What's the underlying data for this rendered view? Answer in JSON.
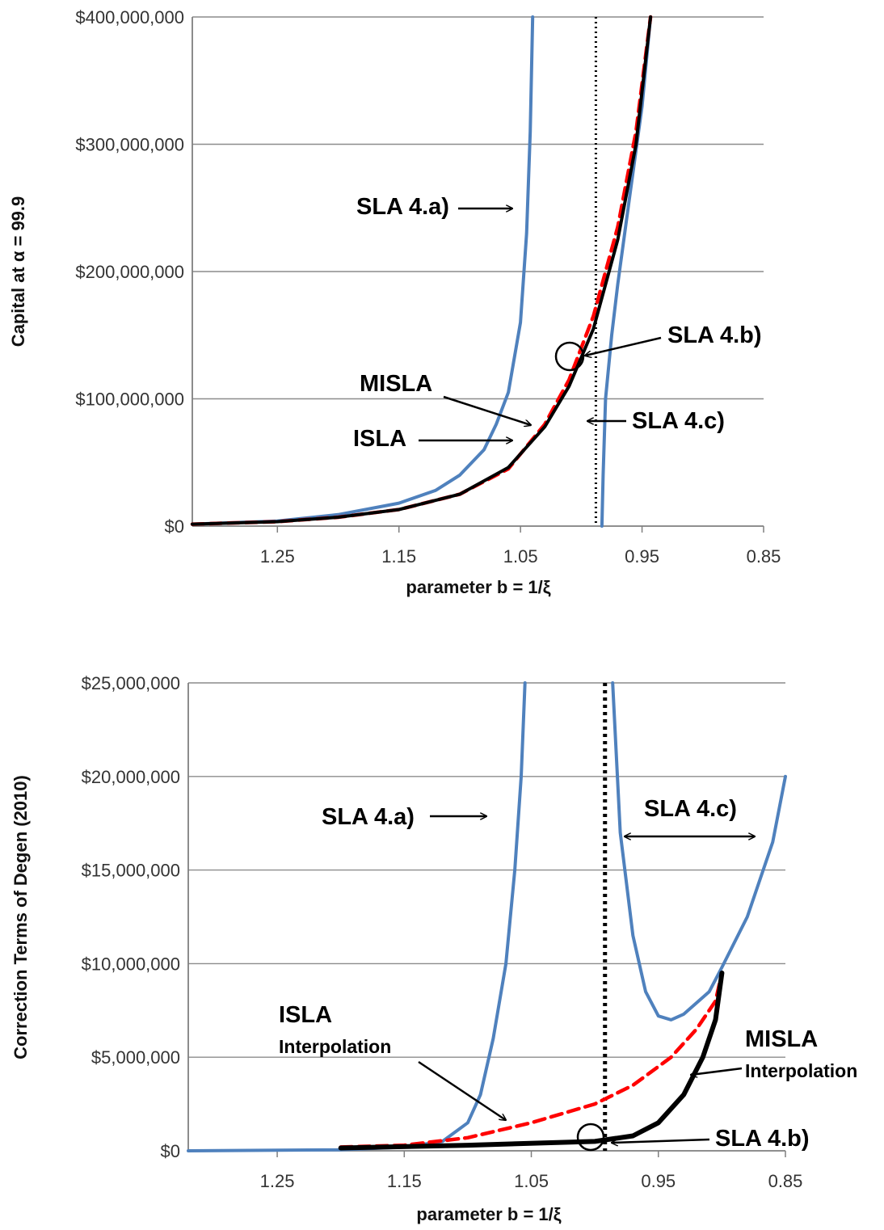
{
  "chart_data": [
    {
      "type": "line",
      "xlabel": "parameter b = 1/ξ",
      "ylabel": "Capital at α = 99.9",
      "x_reversed": true,
      "xlim": [
        1.32,
        0.85
      ],
      "ylim": [
        0,
        400000000
      ],
      "x_ticks": [
        "1.25",
        "1.15",
        "1.05",
        "0.95",
        "0.85"
      ],
      "y_ticks": [
        "$0",
        "$100,000,000",
        "$200,000,000",
        "$300,000,000",
        "$400,000,000"
      ],
      "grid": "horizontal",
      "vline_x": 0.988,
      "series": [
        {
          "key": "sla4a",
          "color": "#4f81bd",
          "style": "solid",
          "points": [
            [
              1.32,
              1500000
            ],
            [
              1.25,
              4000000
            ],
            [
              1.2,
              9000000
            ],
            [
              1.15,
              18000000
            ],
            [
              1.12,
              28000000
            ],
            [
              1.1,
              40000000
            ],
            [
              1.08,
              60000000
            ],
            [
              1.07,
              80000000
            ],
            [
              1.06,
              105000000
            ],
            [
              1.05,
              160000000
            ],
            [
              1.045,
              230000000
            ],
            [
              1.042,
              310000000
            ],
            [
              1.04,
              400000000
            ]
          ]
        },
        {
          "key": "sla4c",
          "color": "#4f81bd",
          "style": "solid",
          "points": [
            [
              0.983,
              0
            ],
            [
              0.982,
              40000000
            ],
            [
              0.98,
              100000000
            ],
            [
              0.975,
              150000000
            ],
            [
              0.97,
              190000000
            ],
            [
              0.96,
              260000000
            ],
            [
              0.95,
              330000000
            ],
            [
              0.943,
              400000000
            ]
          ]
        },
        {
          "key": "isla",
          "color": "#ff0000",
          "style": "dashed",
          "points": [
            [
              1.32,
              1500000
            ],
            [
              1.25,
              3500000
            ],
            [
              1.2,
              7000000
            ],
            [
              1.15,
              13000000
            ],
            [
              1.1,
              25000000
            ],
            [
              1.06,
              45000000
            ],
            [
              1.03,
              80000000
            ],
            [
              1.01,
              115000000
            ],
            [
              0.99,
              165000000
            ],
            [
              0.97,
              235000000
            ],
            [
              0.955,
              310000000
            ],
            [
              0.943,
              400000000
            ]
          ]
        },
        {
          "key": "misla",
          "color": "#000000",
          "style": "solid",
          "points": [
            [
              1.32,
              1500000
            ],
            [
              1.25,
              3500000
            ],
            [
              1.2,
              7000000
            ],
            [
              1.15,
              13000000
            ],
            [
              1.1,
              25000000
            ],
            [
              1.06,
              46000000
            ],
            [
              1.03,
              78000000
            ],
            [
              1.01,
              110000000
            ],
            [
              0.99,
              155000000
            ],
            [
              0.97,
              225000000
            ],
            [
              0.955,
              300000000
            ],
            [
              0.943,
              400000000
            ]
          ]
        }
      ]
    },
    {
      "type": "line",
      "xlabel": "parameter b = 1/ξ",
      "ylabel": "Correction Terms of Degen (2010)",
      "x_reversed": true,
      "xlim": [
        1.32,
        0.85
      ],
      "ylim": [
        0,
        25000000
      ],
      "x_ticks": [
        "1.25",
        "1.15",
        "1.05",
        "0.95",
        "0.85"
      ],
      "y_ticks": [
        "$0",
        "$5,000,000",
        "$10,000,000",
        "$15,000,000",
        "$20,000,000",
        "$25,000,000"
      ],
      "grid": "horizontal",
      "vline_x": 0.992,
      "series": [
        {
          "key": "sla4a",
          "color": "#4f81bd",
          "style": "solid",
          "points": [
            [
              1.32,
              0
            ],
            [
              1.2,
              50000
            ],
            [
              1.15,
              200000
            ],
            [
              1.12,
              500000
            ],
            [
              1.1,
              1500000
            ],
            [
              1.09,
              3000000
            ],
            [
              1.08,
              6000000
            ],
            [
              1.07,
              10000000
            ],
            [
              1.063,
              15000000
            ],
            [
              1.058,
              20000000
            ],
            [
              1.055,
              25000000
            ]
          ]
        },
        {
          "key": "sla4c",
          "color": "#4f81bd",
          "style": "solid",
          "points": [
            [
              0.986,
              25000000
            ],
            [
              0.98,
              17000000
            ],
            [
              0.97,
              11500000
            ],
            [
              0.96,
              8500000
            ],
            [
              0.95,
              7200000
            ],
            [
              0.94,
              7000000
            ],
            [
              0.93,
              7300000
            ],
            [
              0.91,
              8500000
            ],
            [
              0.9,
              9800000
            ],
            [
              0.88,
              12500000
            ],
            [
              0.86,
              16500000
            ],
            [
              0.85,
              20000000
            ]
          ]
        },
        {
          "key": "isla",
          "color": "#ff0000",
          "style": "dashed",
          "points": [
            [
              1.2,
              200000
            ],
            [
              1.15,
              300000
            ],
            [
              1.1,
              700000
            ],
            [
              1.05,
              1500000
            ],
            [
              1.0,
              2500000
            ],
            [
              0.97,
              3500000
            ],
            [
              0.94,
              5000000
            ],
            [
              0.92,
              6500000
            ],
            [
              0.905,
              8000000
            ],
            [
              0.9,
              9500000
            ]
          ]
        },
        {
          "key": "misla",
          "color": "#000000",
          "style": "solid",
          "points": [
            [
              1.2,
              150000
            ],
            [
              1.1,
              300000
            ],
            [
              1.0,
              500000
            ],
            [
              0.97,
              800000
            ],
            [
              0.95,
              1500000
            ],
            [
              0.93,
              3000000
            ],
            [
              0.915,
              5000000
            ],
            [
              0.905,
              7000000
            ],
            [
              0.9,
              9500000
            ]
          ]
        }
      ]
    }
  ],
  "annotations": {
    "top": {
      "sla4a": "SLA 4.a)",
      "sla4b": "SLA 4.b)",
      "sla4c": "SLA 4.c)",
      "misla": "MISLA",
      "isla": "ISLA"
    },
    "bottom": {
      "sla4a": "SLA 4.a)",
      "sla4b": "SLA 4.b)",
      "sla4c": "SLA 4.c)",
      "misla": "MISLA",
      "misla_sub": "Interpolation",
      "isla": "ISLA",
      "isla_sub": "Interpolation"
    }
  }
}
